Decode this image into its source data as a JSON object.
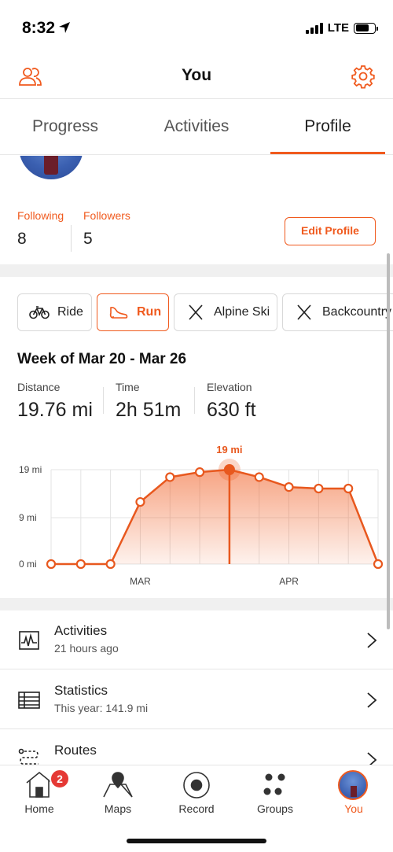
{
  "status_bar": {
    "time": "8:32",
    "network": "LTE"
  },
  "header": {
    "title": "You"
  },
  "tabs": [
    {
      "label": "Progress"
    },
    {
      "label": "Activities"
    },
    {
      "label": "Profile",
      "selected": true
    }
  ],
  "profile": {
    "following_label": "Following",
    "following_count": "8",
    "followers_label": "Followers",
    "followers_count": "5",
    "edit_button": "Edit Profile"
  },
  "sports": [
    {
      "label": "Ride",
      "icon": "bike-icon"
    },
    {
      "label": "Run",
      "icon": "shoe-icon",
      "selected": true
    },
    {
      "label": "Alpine Ski",
      "icon": "ski-icon"
    },
    {
      "label": "Backcountry",
      "icon": "ski-icon"
    }
  ],
  "week": {
    "title": "Week of Mar 20 - Mar 26",
    "stats": [
      {
        "label": "Distance",
        "value": "19.76 mi"
      },
      {
        "label": "Time",
        "value": "2h 51m"
      },
      {
        "label": "Elevation",
        "value": "630 ft"
      }
    ]
  },
  "chart_data": {
    "type": "area",
    "y_ticks": [
      "19 mi",
      "9 mi",
      "0 mi"
    ],
    "ylim": [
      0,
      19
    ],
    "x_labels": [
      {
        "label": "MAR",
        "index": 3
      },
      {
        "label": "APR",
        "index": 8
      }
    ],
    "values": [
      0,
      0,
      0,
      12.5,
      17.5,
      18.5,
      19,
      17.5,
      15.5,
      15.2,
      15.2,
      0
    ],
    "selected_index": 6,
    "selected_label": "19 mi",
    "accent_color": "#f05a1e",
    "grid": true
  },
  "menu": [
    {
      "title": "Activities",
      "subtitle": "21 hours ago",
      "icon": "activity-chart-icon"
    },
    {
      "title": "Statistics",
      "subtitle": "This year: 141.9 mi",
      "icon": "table-icon"
    },
    {
      "title": "Routes",
      "subtitle": "",
      "icon": "route-icon"
    }
  ],
  "tabbar": [
    {
      "label": "Home",
      "icon": "home-icon",
      "badge": "2"
    },
    {
      "label": "Maps",
      "icon": "map-icon"
    },
    {
      "label": "Record",
      "icon": "record-icon"
    },
    {
      "label": "Groups",
      "icon": "groups-icon"
    },
    {
      "label": "You",
      "icon": "avatar-icon",
      "selected": true
    }
  ]
}
